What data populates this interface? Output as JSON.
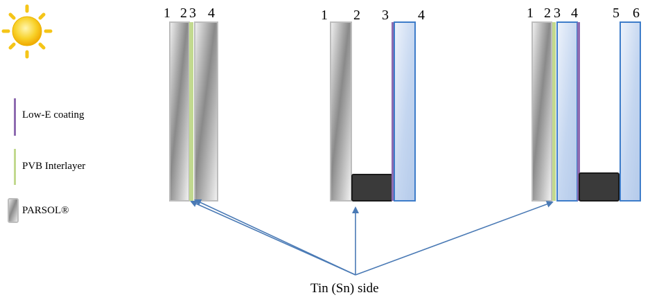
{
  "legend": {
    "low_e": "Low-E coating",
    "pvb": "PVB Interlayer",
    "parsol": "PARSOL®"
  },
  "caption": "Tin (Sn) side",
  "configs": [
    {
      "labels": [
        "1",
        "2",
        "3",
        "4"
      ]
    },
    {
      "labels": [
        "1",
        "2",
        "3",
        "4"
      ]
    },
    {
      "labels": [
        "1",
        "2",
        "3",
        "4",
        "5",
        "6"
      ]
    }
  ],
  "colors": {
    "low_e": "#8e6bb0",
    "pvb": "#c2d98f",
    "parsol_edge": "#bdbdbd",
    "clear_glass_edge": "#3d7cc9",
    "clear_glass_fill": "#c8d9f2",
    "spacer": "#3a3a3a",
    "arrow": "#4a7ab5",
    "sun": "#f5c518"
  },
  "icons": [
    "sun-icon",
    "low-e-swatch-icon",
    "pvb-swatch-icon",
    "parsol-swatch-icon"
  ]
}
